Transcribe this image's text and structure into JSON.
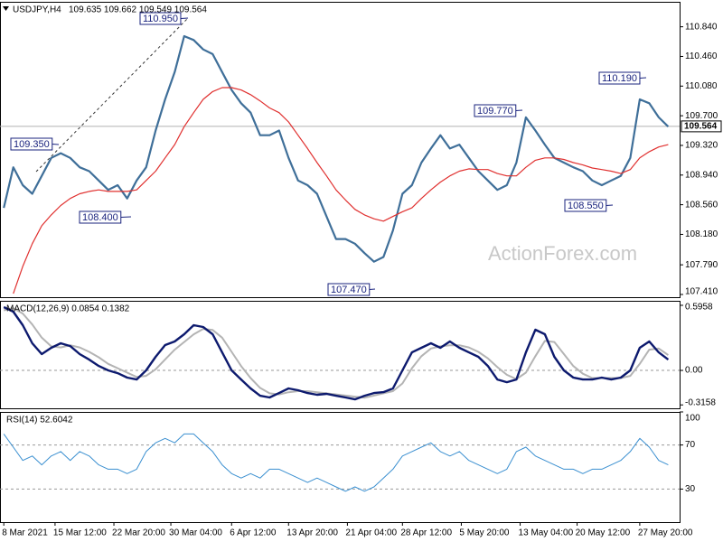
{
  "chart_data": [
    {
      "type": "line",
      "title": "USDJPY,H4",
      "subtitle": "109.635 109.662 109.549 109.564",
      "watermark": "ActionForex.com",
      "x": [
        0,
        5,
        10,
        15,
        20,
        25,
        30,
        35,
        40,
        45,
        50,
        55,
        60,
        65,
        70,
        75,
        80,
        85,
        90,
        95,
        100,
        105,
        110,
        115,
        120,
        125,
        130,
        135,
        140,
        145,
        150,
        155,
        160,
        165,
        170,
        175,
        180,
        185,
        190,
        195,
        200,
        205,
        210,
        215,
        220,
        225,
        230,
        235,
        240,
        245,
        250,
        255,
        260,
        265,
        270,
        275,
        280,
        285,
        290,
        295,
        300,
        305,
        310,
        315,
        320,
        325,
        330,
        335,
        340,
        345,
        350
      ],
      "series": [
        {
          "color": "#3f6f99",
          "values": [
            108.52,
            109.04,
            108.81,
            108.7,
            108.93,
            109.16,
            109.22,
            109.16,
            109.04,
            108.99,
            108.87,
            108.75,
            108.81,
            108.64,
            108.87,
            109.04,
            109.51,
            109.91,
            110.26,
            110.72,
            110.67,
            110.55,
            110.49,
            110.26,
            110.03,
            109.86,
            109.74,
            109.45,
            109.45,
            109.51,
            109.16,
            108.87,
            108.81,
            108.7,
            108.41,
            108.12,
            108.12,
            108.06,
            107.94,
            107.83,
            107.89,
            108.23,
            108.7,
            108.81,
            109.1,
            109.28,
            109.45,
            109.28,
            109.33,
            109.16,
            108.99,
            108.87,
            108.75,
            108.81,
            109.1,
            109.68,
            109.51,
            109.33,
            109.16,
            109.1,
            109.04,
            108.99,
            108.87,
            108.81,
            108.87,
            108.93,
            109.16,
            109.91,
            109.86,
            109.68,
            109.56
          ]
        },
        {
          "color": "#e0302f",
          "values": [
            null,
            107.42,
            107.77,
            108.06,
            108.29,
            108.43,
            108.55,
            108.64,
            108.7,
            108.73,
            108.75,
            108.73,
            108.73,
            108.73,
            108.75,
            108.87,
            108.99,
            109.16,
            109.33,
            109.56,
            109.74,
            109.91,
            110.01,
            110.06,
            110.06,
            110.03,
            109.97,
            109.89,
            109.8,
            109.74,
            109.62,
            109.45,
            109.28,
            109.1,
            108.93,
            108.75,
            108.62,
            108.5,
            108.43,
            108.38,
            108.35,
            108.41,
            108.47,
            108.52,
            108.64,
            108.75,
            108.85,
            108.93,
            108.99,
            109.02,
            109.01,
            109.01,
            108.96,
            108.93,
            108.93,
            109.04,
            109.13,
            109.16,
            109.16,
            109.14,
            109.1,
            109.07,
            109.03,
            109.01,
            108.99,
            108.96,
            109.01,
            109.16,
            109.24,
            109.3,
            109.33
          ]
        }
      ],
      "xlim": [
        -2,
        356
      ],
      "ylim": [
        107.375,
        111.16
      ],
      "yticks": [
        {
          "value": 110.84,
          "label": "110.840"
        },
        {
          "value": 110.46,
          "label": "110.460"
        },
        {
          "value": 110.08,
          "label": "110.080"
        },
        {
          "value": 109.7,
          "label": "109.700"
        },
        {
          "value": 109.32,
          "label": "109.320"
        },
        {
          "value": 108.94,
          "label": "108.940"
        },
        {
          "value": 108.56,
          "label": "108.560"
        },
        {
          "value": 108.18,
          "label": "108.180"
        },
        {
          "value": 107.79,
          "label": "107.790"
        },
        {
          "value": 107.41,
          "label": "107.410"
        }
      ],
      "last_price": {
        "value": 109.564,
        "label": "109.564"
      },
      "annotations": [
        "110.950",
        "109.350",
        "108.400",
        "107.470",
        "109.770",
        "110.190",
        "108.550"
      ]
    },
    {
      "type": "line",
      "title": "MACD(12,26,9) 0.0854 0.1382",
      "x": [
        0,
        5,
        10,
        15,
        20,
        25,
        30,
        35,
        40,
        45,
        50,
        55,
        60,
        65,
        70,
        75,
        80,
        85,
        90,
        95,
        100,
        105,
        110,
        115,
        120,
        125,
        130,
        135,
        140,
        145,
        150,
        155,
        160,
        165,
        170,
        175,
        180,
        185,
        190,
        195,
        200,
        205,
        210,
        215,
        220,
        225,
        230,
        235,
        240,
        245,
        250,
        255,
        260,
        265,
        270,
        275,
        280,
        285,
        290,
        295,
        300,
        305,
        310,
        315,
        320,
        325,
        330,
        335,
        340,
        345,
        350
      ],
      "series": [
        {
          "color": "#b4b4b4",
          "values": [
            0.55,
            0.57,
            0.52,
            0.42,
            0.3,
            0.22,
            0.21,
            0.23,
            0.21,
            0.17,
            0.12,
            0.06,
            0.02,
            -0.02,
            -0.06,
            -0.05,
            0.01,
            0.1,
            0.19,
            0.26,
            0.33,
            0.38,
            0.37,
            0.3,
            0.17,
            0.04,
            -0.07,
            -0.16,
            -0.21,
            -0.22,
            -0.2,
            -0.19,
            -0.19,
            -0.2,
            -0.21,
            -0.22,
            -0.23,
            -0.24,
            -0.25,
            -0.23,
            -0.21,
            -0.19,
            -0.12,
            0.02,
            0.13,
            0.2,
            0.22,
            0.23,
            0.23,
            0.21,
            0.17,
            0.11,
            0.03,
            -0.04,
            -0.08,
            -0.02,
            0.13,
            0.27,
            0.26,
            0.15,
            0.04,
            -0.03,
            -0.07,
            -0.07,
            -0.07,
            -0.07,
            -0.05,
            0.06,
            0.19,
            0.2,
            0.14
          ]
        },
        {
          "color": "#0d1a6e",
          "values": [
            0.579,
            0.538,
            0.414,
            0.248,
            0.149,
            0.207,
            0.248,
            0.223,
            0.149,
            0.099,
            0.041,
            0,
            -0.025,
            -0.066,
            -0.083,
            0,
            0.124,
            0.232,
            0.265,
            0.331,
            0.414,
            0.397,
            0.331,
            0.165,
            0,
            -0.083,
            -0.165,
            -0.232,
            -0.248,
            -0.207,
            -0.165,
            -0.182,
            -0.207,
            -0.223,
            -0.215,
            -0.232,
            -0.248,
            -0.265,
            -0.232,
            -0.207,
            -0.199,
            -0.165,
            0,
            0.165,
            0.207,
            0.248,
            0.207,
            0.265,
            0.207,
            0.165,
            0.124,
            0.041,
            -0.083,
            -0.108,
            -0.083,
            0.165,
            0.372,
            0.331,
            0.124,
            0,
            -0.066,
            -0.083,
            -0.083,
            -0.066,
            -0.083,
            -0.066,
            0,
            0.207,
            0.265,
            0.165,
            0.099
          ]
        }
      ],
      "xlim": [
        -2,
        356
      ],
      "ylim": [
        -0.347,
        0.637
      ],
      "yticks": [
        0.5958,
        {
          "value": 0,
          "label": "0.00"
        },
        -0.3158
      ],
      "levels": [
        0
      ]
    },
    {
      "type": "line",
      "title": "RSI(14) 52.6042",
      "x": [
        0,
        5,
        10,
        15,
        20,
        25,
        30,
        35,
        40,
        45,
        50,
        55,
        60,
        65,
        70,
        75,
        80,
        85,
        90,
        95,
        100,
        105,
        110,
        115,
        120,
        125,
        130,
        135,
        140,
        145,
        150,
        155,
        160,
        165,
        170,
        175,
        180,
        185,
        190,
        195,
        200,
        205,
        210,
        215,
        220,
        225,
        230,
        235,
        240,
        245,
        250,
        255,
        260,
        265,
        270,
        275,
        280,
        285,
        290,
        295,
        300,
        305,
        310,
        315,
        320,
        325,
        330,
        335,
        340,
        345,
        350
      ],
      "series": [
        {
          "color": "#3a8fd0",
          "values": [
            80,
            68,
            56,
            60,
            52,
            60,
            64,
            56,
            64,
            60,
            52,
            48,
            48,
            44,
            48,
            64,
            72,
            76,
            72,
            80,
            80,
            72,
            64,
            52,
            44,
            40,
            44,
            40,
            48,
            48,
            44,
            40,
            36,
            40,
            36,
            32,
            28,
            32,
            28,
            32,
            40,
            48,
            60,
            64,
            68,
            72,
            64,
            60,
            64,
            56,
            52,
            48,
            44,
            48,
            64,
            68,
            60,
            56,
            52,
            48,
            48,
            44,
            48,
            48,
            52,
            56,
            64,
            76,
            68,
            56,
            52
          ]
        }
      ],
      "xlim": [
        -2,
        356
      ],
      "ylim": [
        0,
        100
      ],
      "yticks": [
        100,
        70,
        30
      ],
      "levels": [
        70,
        30
      ],
      "xticks": [
        {
          "value": 0,
          "label": "8 Mar 2021"
        },
        {
          "value": 27,
          "label": "15 Mar 12:00"
        },
        {
          "value": 58,
          "label": "22 Mar 20:00"
        },
        {
          "value": 88,
          "label": "30 Mar 04:00"
        },
        {
          "value": 120,
          "label": "6 Apr 12:00"
        },
        {
          "value": 150,
          "label": "13 Apr 20:00"
        },
        {
          "value": 181,
          "label": "21 Apr 04:00"
        },
        {
          "value": 210,
          "label": "28 Apr 12:00"
        },
        {
          "value": 241,
          "label": "5 May 20:00"
        },
        {
          "value": 272,
          "label": "13 May 04:00"
        },
        {
          "value": 302,
          "label": "20 May 12:00"
        },
        {
          "value": 335,
          "label": "27 May 20:00"
        }
      ]
    }
  ]
}
